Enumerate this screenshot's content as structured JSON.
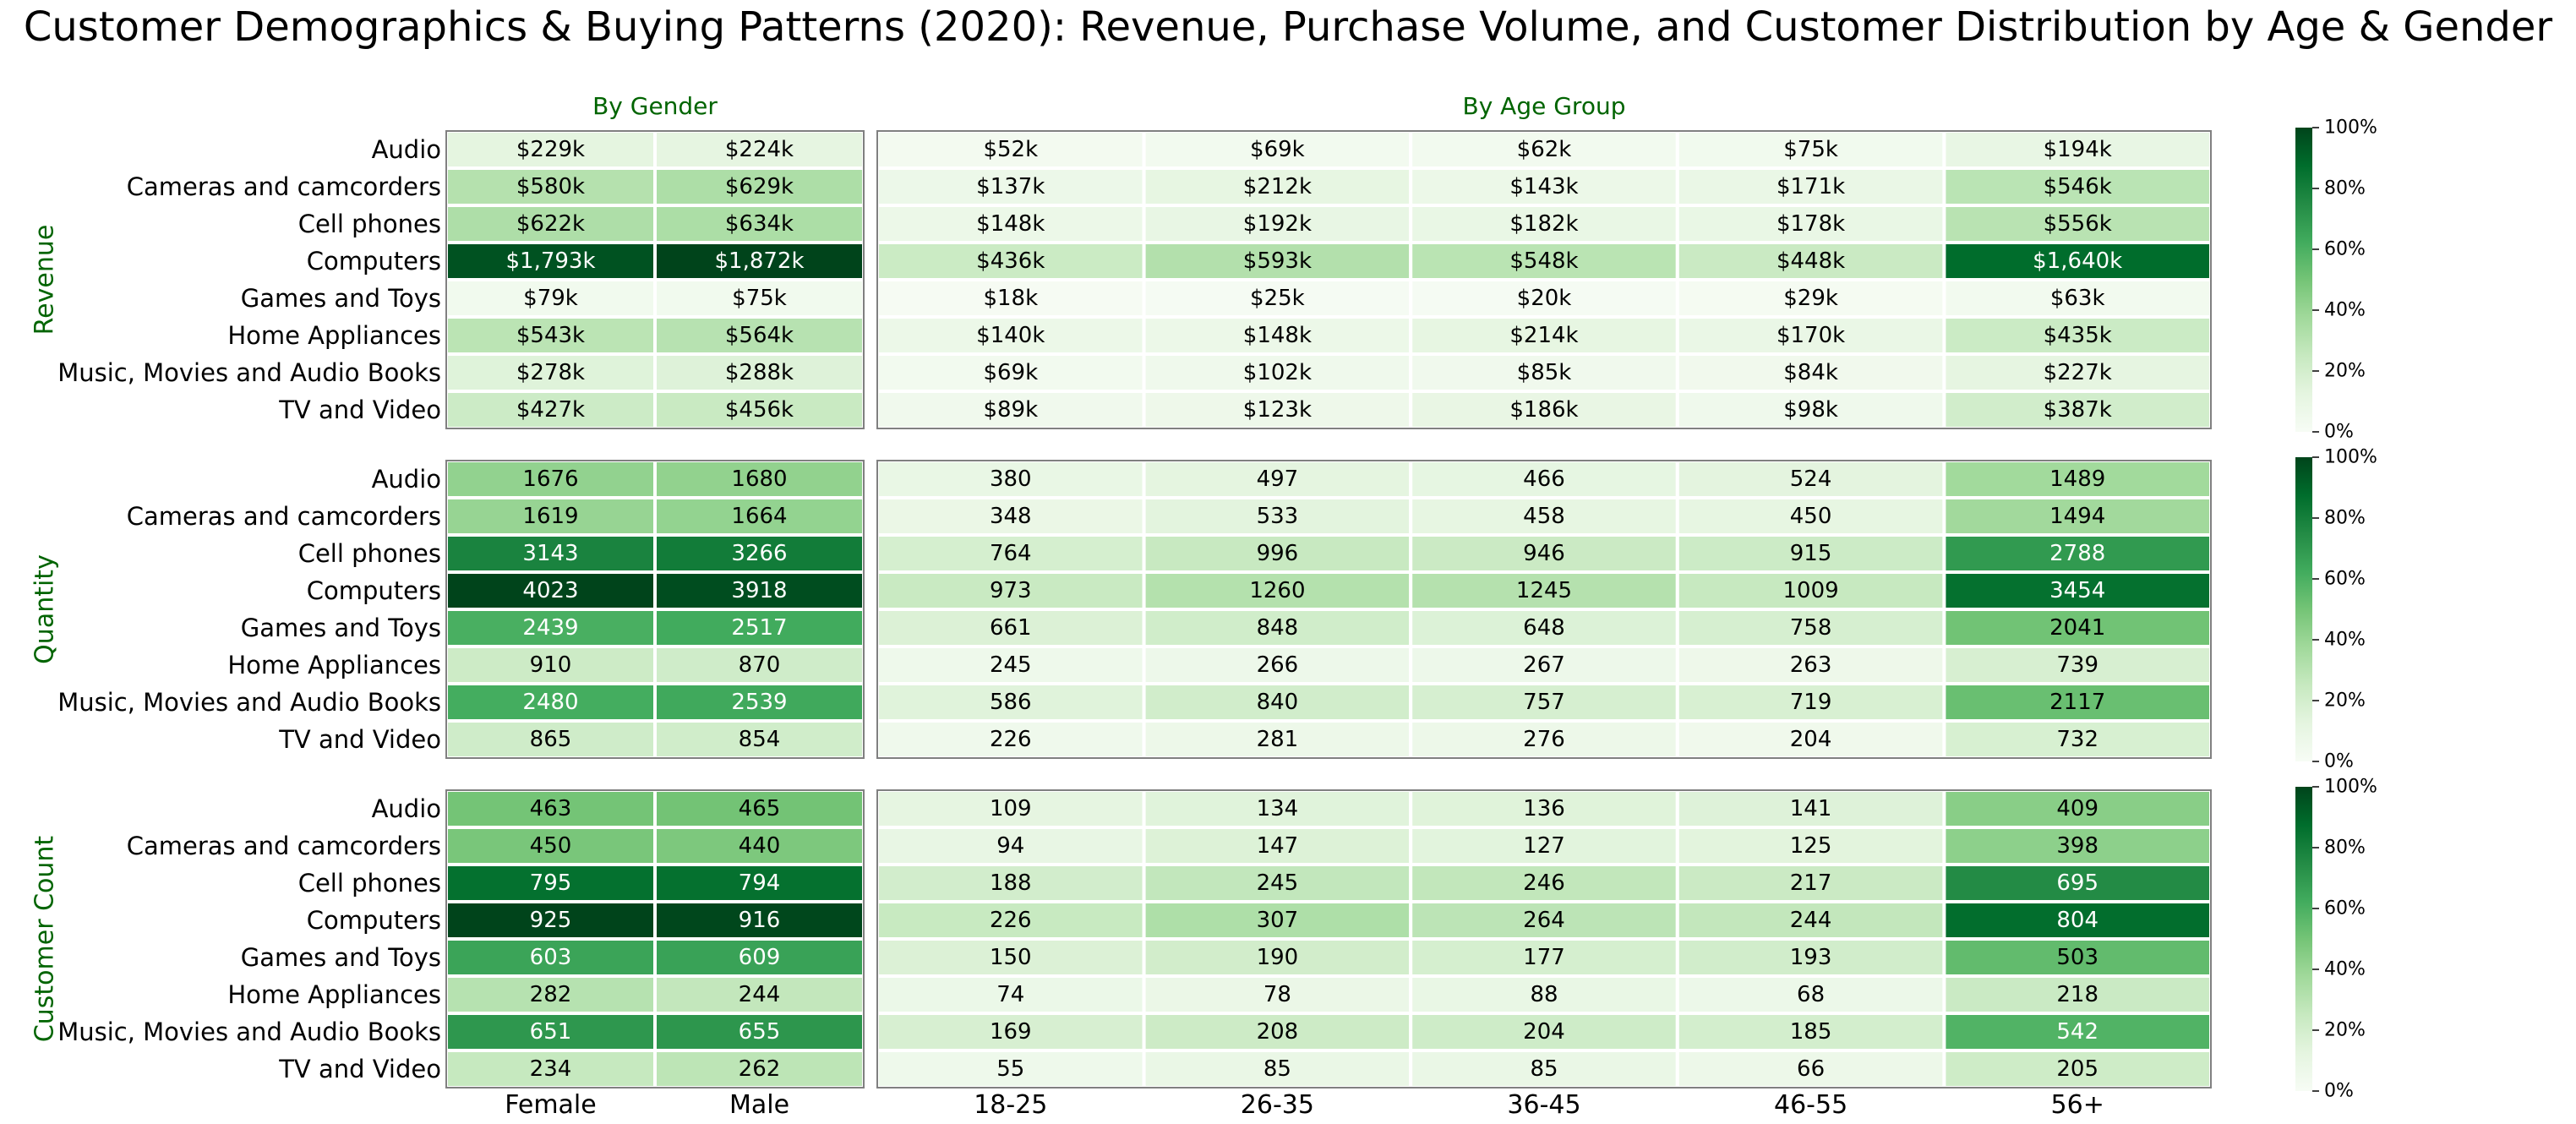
{
  "title": "Customer Demographics & Buying Patterns (2020): Revenue, Purchase Volume, and Customer Distribution by Age & Gender",
  "chart_data": {
    "type": "heatmap",
    "panel_titles": {
      "gender": "By Gender",
      "age": "By Age Group"
    },
    "categories": [
      "Audio",
      "Cameras and camcorders",
      "Cell phones",
      "Computers",
      "Games and Toys",
      "Home Appliances",
      "Music, Movies and Audio Books",
      "TV and Video"
    ],
    "gender_columns": [
      "Female",
      "Male"
    ],
    "age_columns": [
      "18-25",
      "26-35",
      "36-45",
      "46-55",
      "56+"
    ],
    "colorbar_ticks": [
      "0%",
      "20%",
      "40%",
      "60%",
      "80%",
      "100%"
    ],
    "colormap": [
      "#f7fcf5",
      "#e5f5e0",
      "#c7e9c0",
      "#a1d99b",
      "#74c476",
      "#41ab5d",
      "#238b45",
      "#006d2c",
      "#00441b"
    ],
    "metrics": [
      {
        "name": "Revenue",
        "gender_values": [
          [
            229,
            224
          ],
          [
            580,
            629
          ],
          [
            622,
            634
          ],
          [
            1793,
            1872
          ],
          [
            79,
            75
          ],
          [
            543,
            564
          ],
          [
            278,
            288
          ],
          [
            427,
            456
          ]
        ],
        "gender_labels": [
          [
            "$229k",
            "$224k"
          ],
          [
            "$580k",
            "$629k"
          ],
          [
            "$622k",
            "$634k"
          ],
          [
            "$1,793k",
            "$1,872k"
          ],
          [
            "$79k",
            "$75k"
          ],
          [
            "$543k",
            "$564k"
          ],
          [
            "$278k",
            "$288k"
          ],
          [
            "$427k",
            "$456k"
          ]
        ],
        "age_values": [
          [
            52,
            69,
            62,
            75,
            194
          ],
          [
            137,
            212,
            143,
            171,
            546
          ],
          [
            148,
            192,
            182,
            178,
            556
          ],
          [
            436,
            593,
            548,
            448,
            1640
          ],
          [
            18,
            25,
            20,
            29,
            63
          ],
          [
            140,
            148,
            214,
            170,
            435
          ],
          [
            69,
            102,
            85,
            84,
            227
          ],
          [
            89,
            123,
            186,
            98,
            387
          ]
        ],
        "age_labels": [
          [
            "$52k",
            "$69k",
            "$62k",
            "$75k",
            "$194k"
          ],
          [
            "$137k",
            "$212k",
            "$143k",
            "$171k",
            "$546k"
          ],
          [
            "$148k",
            "$192k",
            "$182k",
            "$178k",
            "$556k"
          ],
          [
            "$436k",
            "$593k",
            "$548k",
            "$448k",
            "$1,640k"
          ],
          [
            "$18k",
            "$25k",
            "$20k",
            "$29k",
            "$63k"
          ],
          [
            "$140k",
            "$148k",
            "$214k",
            "$170k",
            "$435k"
          ],
          [
            "$69k",
            "$102k",
            "$85k",
            "$84k",
            "$227k"
          ],
          [
            "$89k",
            "$123k",
            "$186k",
            "$98k",
            "$387k"
          ]
        ]
      },
      {
        "name": "Quantity",
        "gender_values": [
          [
            1676,
            1680
          ],
          [
            1619,
            1664
          ],
          [
            3143,
            3266
          ],
          [
            4023,
            3918
          ],
          [
            2439,
            2517
          ],
          [
            910,
            870
          ],
          [
            2480,
            2539
          ],
          [
            865,
            854
          ]
        ],
        "gender_labels": [
          [
            "1676",
            "1680"
          ],
          [
            "1619",
            "1664"
          ],
          [
            "3143",
            "3266"
          ],
          [
            "4023",
            "3918"
          ],
          [
            "2439",
            "2517"
          ],
          [
            "910",
            "870"
          ],
          [
            "2480",
            "2539"
          ],
          [
            "865",
            "854"
          ]
        ],
        "age_values": [
          [
            380,
            497,
            466,
            524,
            1489
          ],
          [
            348,
            533,
            458,
            450,
            1494
          ],
          [
            764,
            996,
            946,
            915,
            2788
          ],
          [
            973,
            1260,
            1245,
            1009,
            3454
          ],
          [
            661,
            848,
            648,
            758,
            2041
          ],
          [
            245,
            266,
            267,
            263,
            739
          ],
          [
            586,
            840,
            757,
            719,
            2117
          ],
          [
            226,
            281,
            276,
            204,
            732
          ]
        ],
        "age_labels": [
          [
            "380",
            "497",
            "466",
            "524",
            "1489"
          ],
          [
            "348",
            "533",
            "458",
            "450",
            "1494"
          ],
          [
            "764",
            "996",
            "946",
            "915",
            "2788"
          ],
          [
            "973",
            "1260",
            "1245",
            "1009",
            "3454"
          ],
          [
            "661",
            "848",
            "648",
            "758",
            "2041"
          ],
          [
            "245",
            "266",
            "267",
            "263",
            "739"
          ],
          [
            "586",
            "840",
            "757",
            "719",
            "2117"
          ],
          [
            "226",
            "281",
            "276",
            "204",
            "732"
          ]
        ]
      },
      {
        "name": "Customer Count",
        "gender_values": [
          [
            463,
            465
          ],
          [
            450,
            440
          ],
          [
            795,
            794
          ],
          [
            925,
            916
          ],
          [
            603,
            609
          ],
          [
            282,
            244
          ],
          [
            651,
            655
          ],
          [
            234,
            262
          ]
        ],
        "gender_labels": [
          [
            "463",
            "465"
          ],
          [
            "450",
            "440"
          ],
          [
            "795",
            "794"
          ],
          [
            "925",
            "916"
          ],
          [
            "603",
            "609"
          ],
          [
            "282",
            "244"
          ],
          [
            "651",
            "655"
          ],
          [
            "234",
            "262"
          ]
        ],
        "age_values": [
          [
            109,
            134,
            136,
            141,
            409
          ],
          [
            94,
            147,
            127,
            125,
            398
          ],
          [
            188,
            245,
            246,
            217,
            695
          ],
          [
            226,
            307,
            264,
            244,
            804
          ],
          [
            150,
            190,
            177,
            193,
            503
          ],
          [
            74,
            78,
            88,
            68,
            218
          ],
          [
            169,
            208,
            204,
            185,
            542
          ],
          [
            55,
            85,
            85,
            66,
            205
          ]
        ],
        "age_labels": [
          [
            "109",
            "134",
            "136",
            "141",
            "409"
          ],
          [
            "94",
            "147",
            "127",
            "125",
            "398"
          ],
          [
            "188",
            "245",
            "246",
            "217",
            "695"
          ],
          [
            "226",
            "307",
            "264",
            "244",
            "804"
          ],
          [
            "150",
            "190",
            "177",
            "193",
            "503"
          ],
          [
            "74",
            "78",
            "88",
            "68",
            "218"
          ],
          [
            "169",
            "208",
            "204",
            "185",
            "542"
          ],
          [
            "55",
            "85",
            "85",
            "66",
            "205"
          ]
        ]
      }
    ]
  }
}
